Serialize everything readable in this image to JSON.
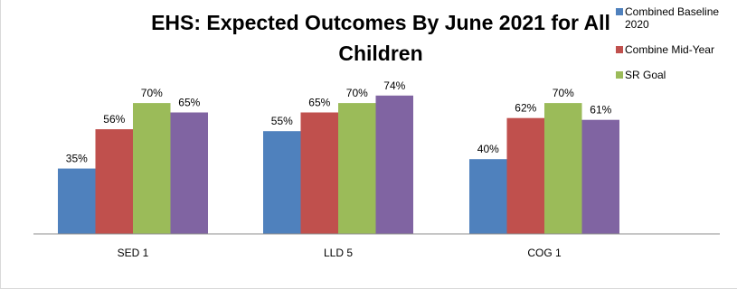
{
  "chart_data": {
    "type": "bar",
    "title": "EHS: Expected Outcomes By June 2021 for All Children",
    "categories": [
      "SED 1",
      "LLD 5",
      "COG 1"
    ],
    "series": [
      {
        "name": "Combined Baseline 2020",
        "color": "#4f81bd",
        "values": [
          35,
          55,
          40
        ],
        "labels": [
          "35%",
          "55%",
          "40%"
        ]
      },
      {
        "name": "Combine Mid-Year",
        "color": "#c0504d",
        "values": [
          56,
          65,
          62
        ],
        "labels": [
          "56%",
          "65%",
          "62%"
        ]
      },
      {
        "name": "SR Goal",
        "color": "#9bbb59",
        "values": [
          70,
          70,
          70
        ],
        "labels": [
          "70%",
          "70%",
          "70%"
        ]
      },
      {
        "name": "",
        "color": "#8064a2",
        "values": [
          65,
          74,
          61
        ],
        "labels": [
          "65%",
          "74%",
          "61%"
        ]
      }
    ],
    "xlabel": "",
    "ylabel": "",
    "ylim": [
      0,
      100
    ],
    "grid": false,
    "legend_position": "top-right"
  }
}
